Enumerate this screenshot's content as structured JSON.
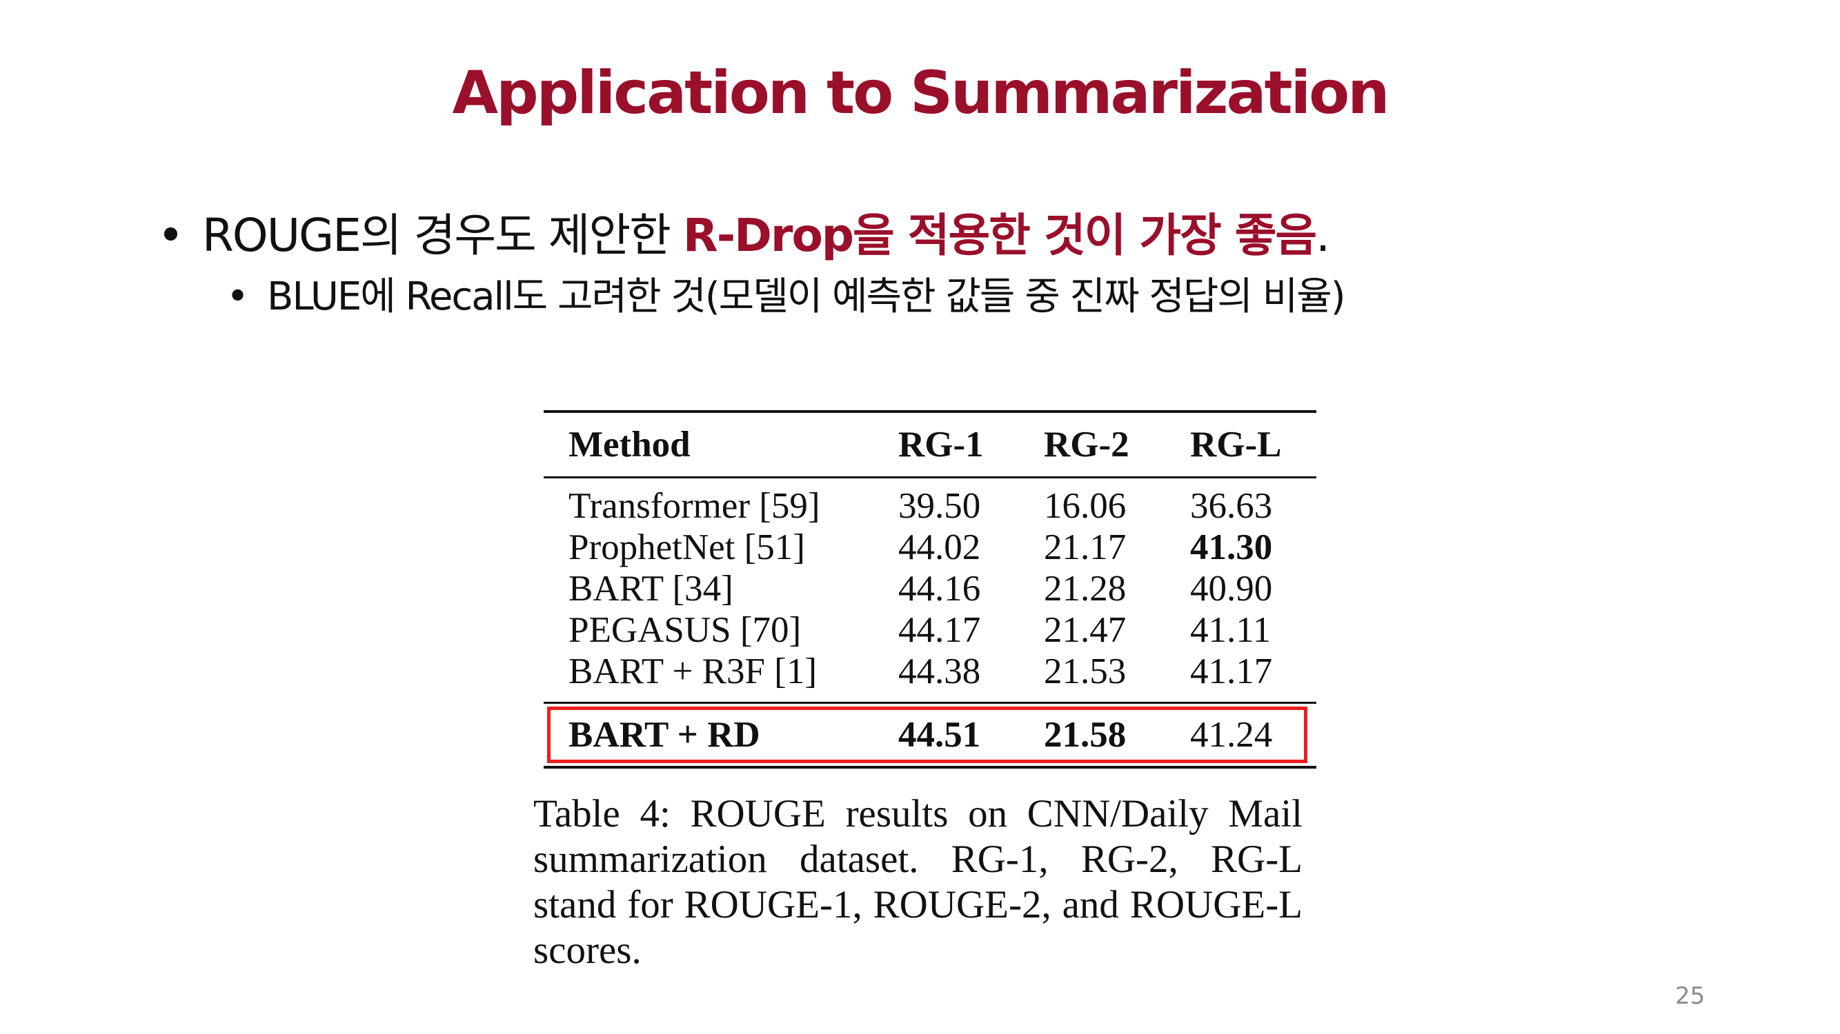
{
  "slide": {
    "title": "Application to Summarization",
    "bullet1": {
      "marker": "•",
      "text_plain": "ROUGE의 경우도 제안한 ",
      "text_highlight": "R-Drop을 적용한 것이 가장 좋음",
      "text_end": ".",
      "accent_color": "#9a0f2a"
    },
    "bullet2": {
      "marker": "•",
      "text": "BLUE에 Recall도 고려한 것(모델이 예측한 값들 중 진짜 정답의 비율)"
    },
    "page_number": "25"
  },
  "table": {
    "headers": [
      "Method",
      "RG-1",
      "RG-2",
      "RG-L"
    ],
    "rows": [
      [
        "Transformer [59]",
        "39.50",
        "16.06",
        "36.63"
      ],
      [
        "ProphetNet [51]",
        "44.02",
        "21.17",
        "41.30"
      ],
      [
        "BART [34]",
        "44.16",
        "21.28",
        "40.90"
      ],
      [
        "PEGASUS [70]",
        "44.17",
        "21.47",
        "41.11"
      ],
      [
        "BART + R3F [1]",
        "44.38",
        "21.53",
        "41.17"
      ]
    ],
    "highlight_row": [
      "BART + RD",
      "44.51",
      "21.58",
      "41.24"
    ],
    "highlight_box_color": "#ee1c1c",
    "caption": "Table 4: ROUGE results on CNN/Daily Mail summarization dataset. RG-1, RG-2, RG-L stand for ROUGE-1, ROUGE-2, and ROUGE-L scores."
  }
}
